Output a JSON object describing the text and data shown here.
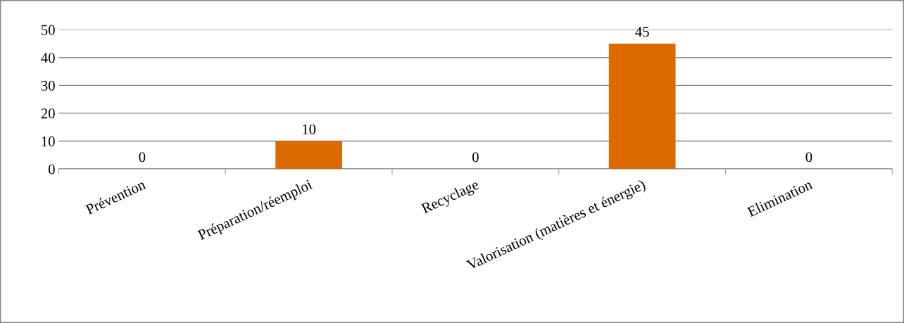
{
  "chart_data": {
    "type": "bar",
    "categories": [
      "Prévention",
      "Préparation/réemploi",
      "Recyclage",
      "Valorisation (matières et énergie)",
      "Elimination"
    ],
    "values": [
      0,
      10,
      0,
      45,
      0
    ],
    "color": "#dd6a00",
    "ylim": [
      0,
      50
    ],
    "yticks": [
      0,
      10,
      20,
      30,
      40,
      50
    ],
    "grid": "y",
    "data_labels": true,
    "legend": false
  }
}
